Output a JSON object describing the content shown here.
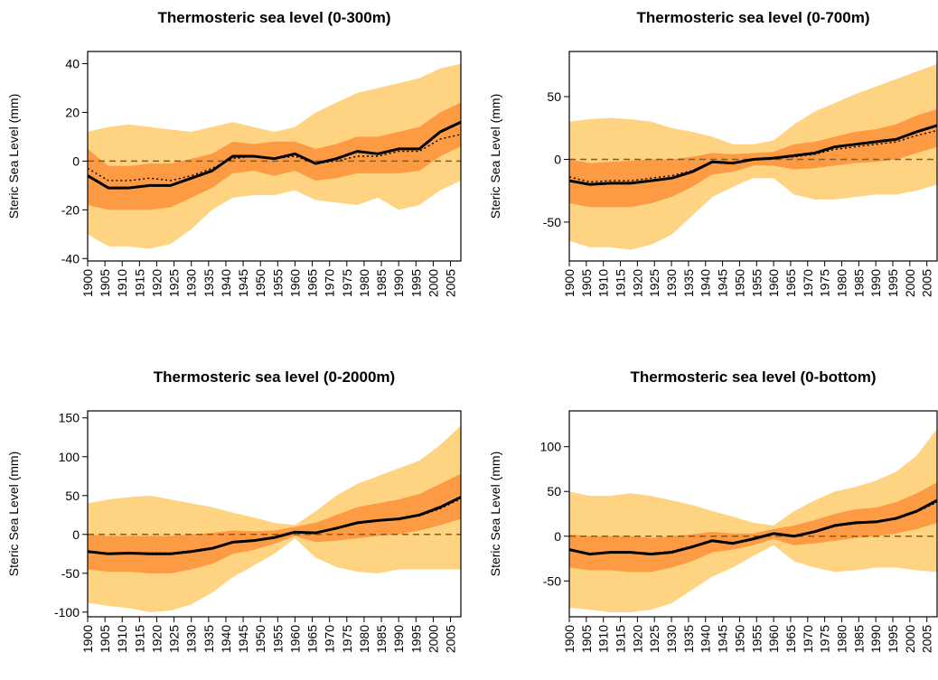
{
  "chart_data": [
    {
      "type": "band-line",
      "title": "Thermosteric sea level (0-300m)",
      "y_label": "Steric Sea Level (mm)",
      "x": [
        1900,
        1906,
        1912,
        1918,
        1924,
        1930,
        1936,
        1942,
        1948,
        1954,
        1960,
        1966,
        1972,
        1978,
        1984,
        1990,
        1996,
        2002,
        2008
      ],
      "xlim": [
        1900,
        2008
      ],
      "xticks": [
        1900,
        1905,
        1910,
        1915,
        1920,
        1925,
        1930,
        1935,
        1940,
        1945,
        1950,
        1955,
        1960,
        1965,
        1970,
        1975,
        1980,
        1985,
        1990,
        1995,
        2000,
        2005
      ],
      "ylim": [
        -41,
        45
      ],
      "yticks": [
        -40,
        -20,
        0,
        20,
        40
      ],
      "hline": 0,
      "hline_color": "#8a5a1e",
      "bands": [
        {
          "color": "#fed381",
          "lower": [
            -30,
            -35,
            -35,
            -36,
            -34,
            -28,
            -20,
            -15,
            -14,
            -14,
            -12,
            -16,
            -17,
            -18,
            -15,
            -20,
            -18,
            -12,
            -8
          ],
          "upper": [
            12,
            14,
            15,
            14,
            13,
            12,
            14,
            16,
            14,
            12,
            14,
            20,
            24,
            28,
            30,
            32,
            34,
            38,
            40
          ]
        },
        {
          "color": "#fd9a44",
          "lower": [
            -18,
            -20,
            -20,
            -20,
            -19,
            -15,
            -11,
            -5,
            -4,
            -6,
            -4,
            -8,
            -7,
            -5,
            -5,
            -5,
            -4,
            2,
            6
          ],
          "upper": [
            5,
            -2,
            -2,
            -1,
            -1,
            1,
            3,
            8,
            7,
            8,
            8,
            5,
            7,
            10,
            10,
            12,
            14,
            20,
            24
          ]
        }
      ],
      "series": [
        {
          "color": "#000000",
          "style": "solid",
          "values": [
            -6,
            -11,
            -11,
            -10,
            -10,
            -7,
            -4,
            2,
            2,
            1,
            3,
            -1,
            1,
            4,
            3,
            5,
            5,
            12,
            16
          ]
        },
        {
          "color": "#000000",
          "style": "dotted",
          "values": [
            -3,
            -8,
            -8,
            -7,
            -8,
            -6,
            -3,
            1,
            2,
            1,
            2,
            -1,
            0,
            2,
            2,
            4,
            4,
            9,
            11
          ]
        }
      ]
    },
    {
      "type": "band-line",
      "title": "Thermosteric sea level (0-700m)",
      "y_label": "Steric Sea Level (mm)",
      "x": [
        1900,
        1906,
        1912,
        1918,
        1924,
        1930,
        1936,
        1942,
        1948,
        1954,
        1960,
        1966,
        1972,
        1978,
        1984,
        1990,
        1996,
        2002,
        2008
      ],
      "xlim": [
        1900,
        2008
      ],
      "xticks": [
        1900,
        1905,
        1910,
        1915,
        1920,
        1925,
        1930,
        1935,
        1940,
        1945,
        1950,
        1955,
        1960,
        1965,
        1970,
        1975,
        1980,
        1985,
        1990,
        1995,
        2000,
        2005
      ],
      "ylim": [
        -81,
        86
      ],
      "yticks": [
        -50,
        0,
        50
      ],
      "hline": 0,
      "hline_color": "#8a5a1e",
      "bands": [
        {
          "color": "#fed381",
          "lower": [
            -65,
            -70,
            -70,
            -72,
            -68,
            -60,
            -45,
            -30,
            -22,
            -15,
            -15,
            -28,
            -32,
            -32,
            -30,
            -28,
            -28,
            -25,
            -20
          ],
          "upper": [
            30,
            32,
            33,
            32,
            30,
            25,
            22,
            18,
            12,
            12,
            15,
            28,
            38,
            45,
            52,
            58,
            64,
            70,
            76
          ]
        },
        {
          "color": "#fd9a44",
          "lower": [
            -35,
            -38,
            -38,
            -38,
            -35,
            -30,
            -22,
            -12,
            -10,
            -5,
            -5,
            -8,
            -7,
            -5,
            -3,
            -2,
            0,
            5,
            10
          ],
          "upper": [
            0,
            -3,
            -2,
            -1,
            0,
            0,
            2,
            5,
            4,
            5,
            6,
            12,
            14,
            18,
            22,
            24,
            28,
            35,
            40
          ]
        }
      ],
      "series": [
        {
          "color": "#000000",
          "style": "solid",
          "values": [
            -17,
            -20,
            -19,
            -19,
            -17,
            -15,
            -10,
            -2,
            -3,
            0,
            1,
            3,
            5,
            10,
            12,
            14,
            16,
            22,
            27
          ]
        },
        {
          "color": "#000000",
          "style": "dotted",
          "values": [
            -14,
            -18,
            -17,
            -17,
            -15,
            -13,
            -9,
            -2,
            -3,
            0,
            1,
            2,
            4,
            8,
            10,
            12,
            14,
            19,
            23
          ]
        }
      ]
    },
    {
      "type": "band-line",
      "title": "Thermosteric sea level (0-2000m)",
      "y_label": "Steric Sea Level (mm)",
      "x": [
        1900,
        1906,
        1912,
        1918,
        1924,
        1930,
        1936,
        1942,
        1948,
        1954,
        1960,
        1966,
        1972,
        1978,
        1984,
        1990,
        1996,
        2002,
        2008
      ],
      "xlim": [
        1900,
        2008
      ],
      "xticks": [
        1900,
        1905,
        1910,
        1915,
        1920,
        1925,
        1930,
        1935,
        1940,
        1945,
        1950,
        1955,
        1960,
        1965,
        1970,
        1975,
        1980,
        1985,
        1990,
        1995,
        2000,
        2005
      ],
      "ylim": [
        -106,
        159
      ],
      "yticks": [
        -100,
        -50,
        0,
        50,
        100,
        150
      ],
      "hline": 0,
      "hline_color": "#8a5a1e",
      "bands": [
        {
          "color": "#fed381",
          "lower": [
            -88,
            -92,
            -95,
            -100,
            -98,
            -90,
            -75,
            -55,
            -40,
            -25,
            -5,
            -30,
            -42,
            -48,
            -50,
            -45,
            -45,
            -45,
            -45
          ],
          "upper": [
            40,
            45,
            48,
            50,
            45,
            40,
            35,
            28,
            22,
            15,
            12,
            30,
            50,
            65,
            75,
            85,
            95,
            115,
            140
          ]
        },
        {
          "color": "#fd9a44",
          "lower": [
            -45,
            -48,
            -48,
            -50,
            -50,
            -45,
            -38,
            -25,
            -20,
            -12,
            -2,
            -10,
            -8,
            -5,
            -2,
            0,
            5,
            12,
            20
          ],
          "upper": [
            0,
            -2,
            -2,
            -2,
            -2,
            0,
            2,
            5,
            4,
            5,
            10,
            15,
            25,
            35,
            40,
            45,
            52,
            65,
            78
          ]
        }
      ],
      "series": [
        {
          "color": "#000000",
          "style": "solid",
          "values": [
            -22,
            -25,
            -24,
            -25,
            -25,
            -22,
            -18,
            -10,
            -8,
            -4,
            3,
            2,
            8,
            15,
            18,
            20,
            25,
            35,
            48
          ]
        },
        {
          "color": "#000000",
          "style": "dotted",
          "values": [
            -22,
            -24,
            -24,
            -24,
            -24,
            -21,
            -17,
            -10,
            -8,
            -4,
            3,
            2,
            8,
            14,
            17,
            20,
            24,
            33,
            46
          ]
        }
      ]
    },
    {
      "type": "band-line",
      "title": "Thermosteric sea level (0-bottom)",
      "y_label": "Steric Sea Level (mm)",
      "x": [
        1900,
        1906,
        1912,
        1918,
        1924,
        1930,
        1936,
        1942,
        1948,
        1954,
        1960,
        1966,
        1972,
        1978,
        1984,
        1990,
        1996,
        2002,
        2008
      ],
      "xlim": [
        1900,
        2008
      ],
      "xticks": [
        1900,
        1905,
        1910,
        1915,
        1920,
        1925,
        1930,
        1935,
        1940,
        1945,
        1950,
        1955,
        1960,
        1965,
        1970,
        1975,
        1980,
        1985,
        1990,
        1995,
        2000,
        2005
      ],
      "ylim": [
        -90,
        140
      ],
      "yticks": [
        -50,
        0,
        50,
        100
      ],
      "hline": 0,
      "hline_color": "#8a5a1e",
      "bands": [
        {
          "color": "#fed381",
          "lower": [
            -80,
            -82,
            -85,
            -85,
            -82,
            -75,
            -60,
            -45,
            -35,
            -22,
            -10,
            -28,
            -35,
            -40,
            -38,
            -35,
            -35,
            -38,
            -40
          ],
          "upper": [
            50,
            45,
            45,
            48,
            45,
            40,
            35,
            28,
            22,
            15,
            12,
            28,
            40,
            50,
            55,
            62,
            72,
            90,
            120
          ]
        },
        {
          "color": "#fd9a44",
          "lower": [
            -35,
            -38,
            -38,
            -40,
            -40,
            -35,
            -28,
            -18,
            -15,
            -10,
            -3,
            -10,
            -8,
            -5,
            -2,
            0,
            3,
            8,
            15
          ],
          "upper": [
            2,
            0,
            0,
            0,
            -2,
            0,
            2,
            5,
            3,
            3,
            8,
            12,
            18,
            25,
            30,
            32,
            38,
            48,
            60
          ]
        }
      ],
      "series": [
        {
          "color": "#000000",
          "style": "solid",
          "values": [
            -15,
            -20,
            -18,
            -18,
            -20,
            -18,
            -12,
            -5,
            -8,
            -3,
            3,
            0,
            5,
            12,
            15,
            16,
            20,
            28,
            40
          ]
        },
        {
          "color": "#000000",
          "style": "dotted",
          "values": [
            -15,
            -19,
            -18,
            -18,
            -19,
            -17,
            -11,
            -5,
            -7,
            -3,
            3,
            0,
            5,
            11,
            14,
            16,
            19,
            27,
            38
          ]
        }
      ]
    }
  ]
}
